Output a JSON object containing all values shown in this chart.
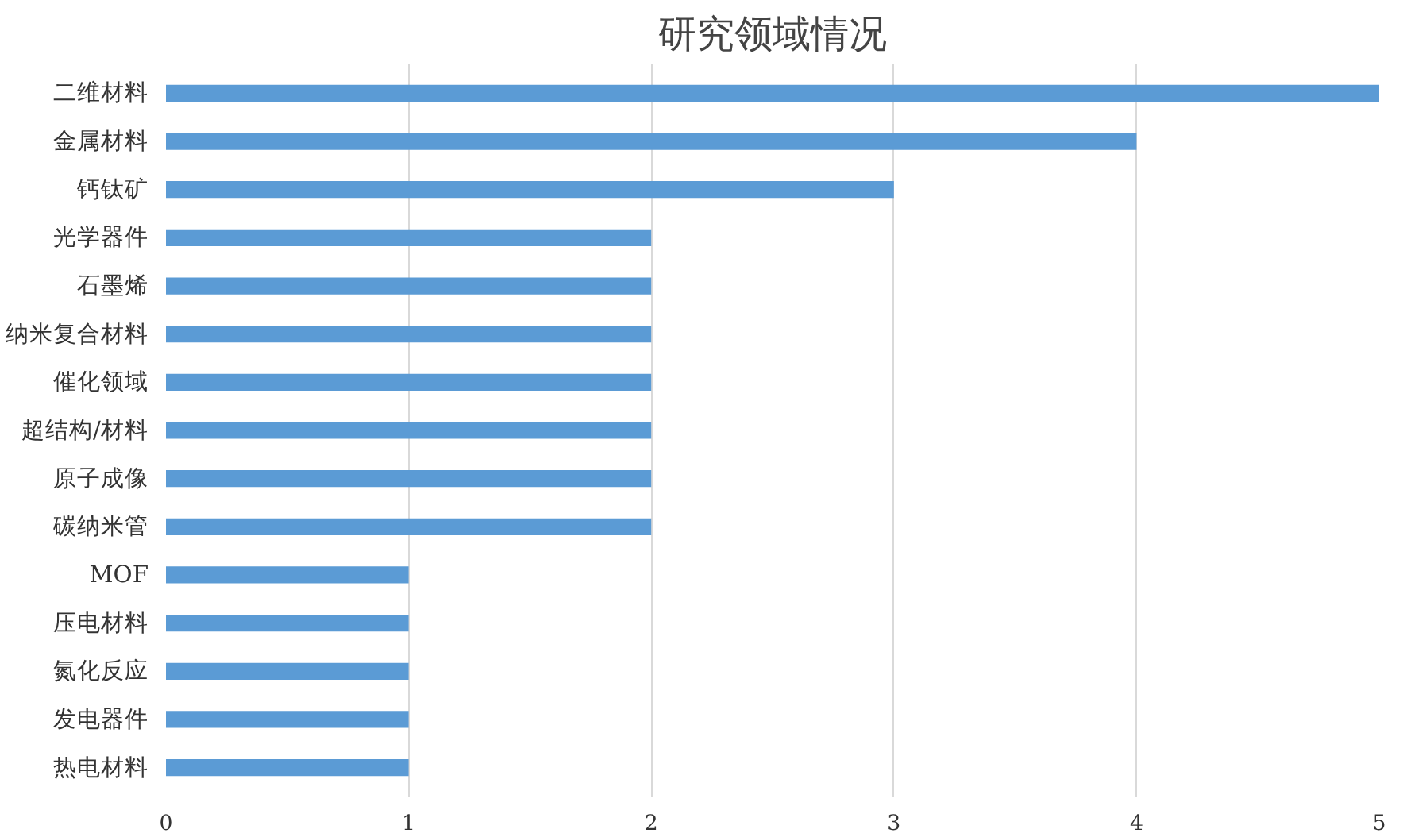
{
  "chart_data": {
    "type": "bar",
    "orientation": "horizontal",
    "title": "研究领域情况",
    "categories": [
      "二维材料",
      "金属材料",
      "钙钛矿",
      "光学器件",
      "石墨烯",
      "纳米复合材料",
      "催化领域",
      "超结构/材料",
      "原子成像",
      "碳纳米管",
      "MOF",
      "压电材料",
      "氮化反应",
      "发电器件",
      "热电材料"
    ],
    "values": [
      5,
      4,
      3,
      2,
      2,
      2,
      2,
      2,
      2,
      2,
      1,
      1,
      1,
      1,
      1
    ],
    "color": "#5b9bd5",
    "xlim": [
      0,
      5
    ],
    "xticks": [
      0,
      1,
      2,
      3,
      4,
      5
    ],
    "grid": "x"
  }
}
